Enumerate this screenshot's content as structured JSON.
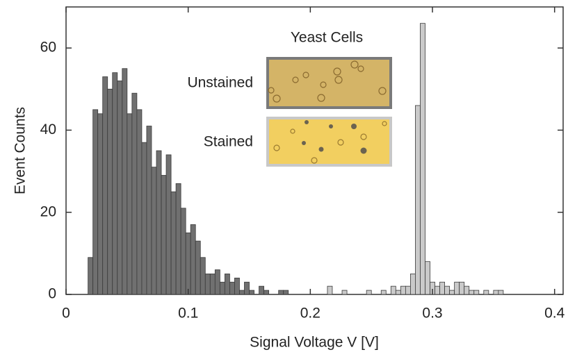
{
  "chart_data": {
    "type": "histogram",
    "xlabel": "Signal Voltage V [V]",
    "ylabel": "Event Counts",
    "xlim": [
      0,
      0.407
    ],
    "ylim": [
      0,
      70
    ],
    "xticks": [
      0,
      0.1,
      0.2,
      0.3,
      0.4
    ],
    "yticks": [
      0,
      20,
      40,
      60
    ],
    "inset_title": "Yeast Cells",
    "inset_labels": [
      "Unstained",
      "Stained"
    ],
    "bins": [
      0.018,
      0.022,
      0.026,
      0.03,
      0.034,
      0.038,
      0.042,
      0.046,
      0.05,
      0.054,
      0.058,
      0.062,
      0.066,
      0.07,
      0.074,
      0.078,
      0.082,
      0.086,
      0.09,
      0.094,
      0.098,
      0.102,
      0.106,
      0.11,
      0.114,
      0.118,
      0.122,
      0.126,
      0.13,
      0.134,
      0.138,
      0.142,
      0.146,
      0.15,
      0.154,
      0.158,
      0.162,
      0.166,
      0.17,
      0.174,
      0.178,
      0.182,
      0.186,
      0.19,
      0.194,
      0.198,
      0.202,
      0.206,
      0.21,
      0.214,
      0.218,
      0.222,
      0.226,
      0.23,
      0.234,
      0.238,
      0.242,
      0.246,
      0.25,
      0.254,
      0.258,
      0.262,
      0.266,
      0.27,
      0.274,
      0.278,
      0.282,
      0.286,
      0.29,
      0.294,
      0.298,
      0.302,
      0.306,
      0.31,
      0.314,
      0.318,
      0.322,
      0.326,
      0.33,
      0.334,
      0.338,
      0.342,
      0.346,
      0.35,
      0.354,
      0.358,
      0.362,
      0.366
    ],
    "series": [
      {
        "color": "#707070",
        "values": [
          9,
          45,
          44,
          53,
          50,
          54,
          52,
          55,
          44,
          49,
          45,
          37,
          41,
          31,
          35,
          29,
          34,
          25,
          27,
          21,
          15,
          17,
          13,
          9,
          5,
          5,
          6,
          3,
          5,
          3,
          4,
          1,
          3,
          1,
          0,
          2,
          1,
          0,
          0,
          1,
          1,
          0,
          0,
          0,
          0,
          0,
          0,
          0,
          0,
          0,
          0,
          0,
          0,
          0,
          0,
          0,
          0,
          0,
          0,
          0,
          0,
          0,
          0,
          0,
          0,
          0,
          0,
          0,
          0,
          0,
          0,
          0,
          0,
          0,
          0,
          0,
          0,
          0,
          0,
          0,
          0,
          0,
          0,
          0,
          0,
          0,
          0
        ]
      },
      {
        "color": "#cacaca",
        "values": [
          0,
          0,
          0,
          0,
          0,
          0,
          0,
          0,
          0,
          0,
          0,
          0,
          0,
          0,
          0,
          0,
          0,
          0,
          0,
          0,
          0,
          0,
          0,
          0,
          0,
          0,
          0,
          0,
          0,
          0,
          0,
          0,
          0,
          0,
          0,
          0,
          0,
          0,
          0,
          0,
          0,
          0,
          0,
          0,
          0,
          0,
          0,
          0,
          0,
          2,
          0,
          0,
          1,
          0,
          0,
          0,
          0,
          1,
          0,
          0,
          1,
          0,
          2,
          1,
          2,
          2,
          5,
          46,
          66,
          8,
          3,
          2,
          3,
          2,
          1,
          3,
          3,
          2,
          1,
          1,
          0,
          1,
          0,
          1,
          1,
          0,
          0
        ]
      }
    ]
  }
}
